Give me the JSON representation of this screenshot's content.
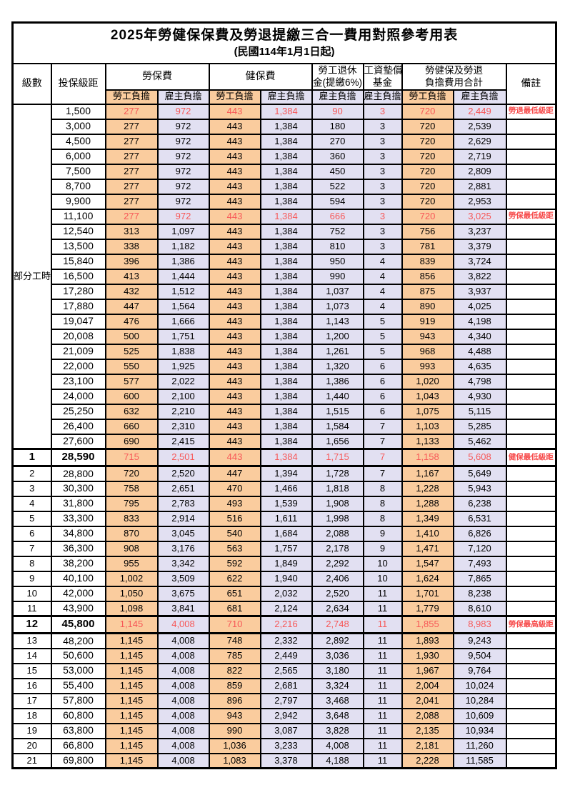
{
  "title": "2025年勞健保保費及勞退提繳三合一費用對照參考用表",
  "subtitle": "(民國114年1月1日起)",
  "columns": {
    "level": "級數",
    "bracket": "投保級距",
    "labor": "勞保費",
    "health": "健保費",
    "pension_l1": "勞工退休",
    "pension_l2": "金(提繳6%)",
    "fund_l1": "工資墊償",
    "fund_l2": "基金",
    "total_l1": "勞健保及勞退",
    "total_l2": "負擔費用合計",
    "remark": "備註",
    "employee": "勞工負擔",
    "employer": "雇主負擔"
  },
  "part_time_label": "部分工時",
  "part_time_rowspan": 23,
  "colors": {
    "employee_bg": "#FACC9E",
    "employer_bg": "#E2E0F2",
    "highlight_text": "#F75757",
    "note_text": "#F74B4B",
    "border": "#000000"
  },
  "row_fields": [
    "level",
    "bracket",
    "labor_employee",
    "labor_employer",
    "health_employee",
    "health_employer",
    "pension_employer",
    "fund_employer",
    "total_employee",
    "total_employer",
    "note",
    "flags"
  ],
  "rows": [
    [
      "",
      "1,500",
      "277",
      "972",
      "443",
      "1,384",
      "90",
      "3",
      "720",
      "2,449",
      "勞退最低級距",
      "red"
    ],
    [
      "",
      "3,000",
      "277",
      "972",
      "443",
      "1,384",
      "180",
      "3",
      "720",
      "2,539",
      "",
      ""
    ],
    [
      "",
      "4,500",
      "277",
      "972",
      "443",
      "1,384",
      "270",
      "3",
      "720",
      "2,629",
      "",
      ""
    ],
    [
      "",
      "6,000",
      "277",
      "972",
      "443",
      "1,384",
      "360",
      "3",
      "720",
      "2,719",
      "",
      ""
    ],
    [
      "",
      "7,500",
      "277",
      "972",
      "443",
      "1,384",
      "450",
      "3",
      "720",
      "2,809",
      "",
      ""
    ],
    [
      "",
      "8,700",
      "277",
      "972",
      "443",
      "1,384",
      "522",
      "3",
      "720",
      "2,881",
      "",
      ""
    ],
    [
      "",
      "9,900",
      "277",
      "972",
      "443",
      "1,384",
      "594",
      "3",
      "720",
      "2,953",
      "",
      ""
    ],
    [
      "",
      "11,100",
      "277",
      "972",
      "443",
      "1,384",
      "666",
      "3",
      "720",
      "3,025",
      "勞保最低級距",
      "red"
    ],
    [
      "",
      "12,540",
      "313",
      "1,097",
      "443",
      "1,384",
      "752",
      "3",
      "756",
      "3,237",
      "",
      ""
    ],
    [
      "",
      "13,500",
      "338",
      "1,182",
      "443",
      "1,384",
      "810",
      "3",
      "781",
      "3,379",
      "",
      ""
    ],
    [
      "",
      "15,840",
      "396",
      "1,386",
      "443",
      "1,384",
      "950",
      "4",
      "839",
      "3,724",
      "",
      ""
    ],
    [
      "",
      "16,500",
      "413",
      "1,444",
      "443",
      "1,384",
      "990",
      "4",
      "856",
      "3,822",
      "",
      ""
    ],
    [
      "",
      "17,280",
      "432",
      "1,512",
      "443",
      "1,384",
      "1,037",
      "4",
      "875",
      "3,937",
      "",
      ""
    ],
    [
      "",
      "17,880",
      "447",
      "1,564",
      "443",
      "1,384",
      "1,073",
      "4",
      "890",
      "4,025",
      "",
      ""
    ],
    [
      "",
      "19,047",
      "476",
      "1,666",
      "443",
      "1,384",
      "1,143",
      "5",
      "919",
      "4,198",
      "",
      ""
    ],
    [
      "",
      "20,008",
      "500",
      "1,751",
      "443",
      "1,384",
      "1,200",
      "5",
      "943",
      "4,340",
      "",
      ""
    ],
    [
      "",
      "21,009",
      "525",
      "1,838",
      "443",
      "1,384",
      "1,261",
      "5",
      "968",
      "4,488",
      "",
      ""
    ],
    [
      "",
      "22,000",
      "550",
      "1,925",
      "443",
      "1,384",
      "1,320",
      "6",
      "993",
      "4,635",
      "",
      ""
    ],
    [
      "",
      "23,100",
      "577",
      "2,022",
      "443",
      "1,384",
      "1,386",
      "6",
      "1,020",
      "4,798",
      "",
      ""
    ],
    [
      "",
      "24,000",
      "600",
      "2,100",
      "443",
      "1,384",
      "1,440",
      "6",
      "1,043",
      "4,930",
      "",
      ""
    ],
    [
      "",
      "25,250",
      "632",
      "2,210",
      "443",
      "1,384",
      "1,515",
      "6",
      "1,075",
      "5,115",
      "",
      ""
    ],
    [
      "",
      "26,400",
      "660",
      "2,310",
      "443",
      "1,384",
      "1,584",
      "7",
      "1,103",
      "5,285",
      "",
      ""
    ],
    [
      "",
      "27,600",
      "690",
      "2,415",
      "443",
      "1,384",
      "1,656",
      "7",
      "1,133",
      "5,462",
      "",
      ""
    ],
    [
      "1",
      "28,590",
      "715",
      "2,501",
      "443",
      "1,384",
      "1,715",
      "7",
      "1,158",
      "5,608",
      "健保最低級距",
      "red bold sep"
    ],
    [
      "2",
      "28,800",
      "720",
      "2,520",
      "447",
      "1,394",
      "1,728",
      "7",
      "1,167",
      "5,649",
      "",
      ""
    ],
    [
      "3",
      "30,300",
      "758",
      "2,651",
      "470",
      "1,466",
      "1,818",
      "8",
      "1,228",
      "5,943",
      "",
      ""
    ],
    [
      "4",
      "31,800",
      "795",
      "2,783",
      "493",
      "1,539",
      "1,908",
      "8",
      "1,288",
      "6,238",
      "",
      ""
    ],
    [
      "5",
      "33,300",
      "833",
      "2,914",
      "516",
      "1,611",
      "1,998",
      "8",
      "1,349",
      "6,531",
      "",
      ""
    ],
    [
      "6",
      "34,800",
      "870",
      "3,045",
      "540",
      "1,684",
      "2,088",
      "9",
      "1,410",
      "6,826",
      "",
      ""
    ],
    [
      "7",
      "36,300",
      "908",
      "3,176",
      "563",
      "1,757",
      "2,178",
      "9",
      "1,471",
      "7,120",
      "",
      ""
    ],
    [
      "8",
      "38,200",
      "955",
      "3,342",
      "592",
      "1,849",
      "2,292",
      "10",
      "1,547",
      "7,493",
      "",
      ""
    ],
    [
      "9",
      "40,100",
      "1,002",
      "3,509",
      "622",
      "1,940",
      "2,406",
      "10",
      "1,624",
      "7,865",
      "",
      ""
    ],
    [
      "10",
      "42,000",
      "1,050",
      "3,675",
      "651",
      "2,032",
      "2,520",
      "11",
      "1,701",
      "8,238",
      "",
      ""
    ],
    [
      "11",
      "43,900",
      "1,098",
      "3,841",
      "681",
      "2,124",
      "2,634",
      "11",
      "1,779",
      "8,610",
      "",
      ""
    ],
    [
      "12",
      "45,800",
      "1,145",
      "4,008",
      "710",
      "2,216",
      "2,748",
      "11",
      "1,855",
      "8,983",
      "勞保最高級距",
      "red bold sep"
    ],
    [
      "13",
      "48,200",
      "1,145",
      "4,008",
      "748",
      "2,332",
      "2,892",
      "11",
      "1,893",
      "9,243",
      "",
      ""
    ],
    [
      "14",
      "50,600",
      "1,145",
      "4,008",
      "785",
      "2,449",
      "3,036",
      "11",
      "1,930",
      "9,504",
      "",
      ""
    ],
    [
      "15",
      "53,000",
      "1,145",
      "4,008",
      "822",
      "2,565",
      "3,180",
      "11",
      "1,967",
      "9,764",
      "",
      ""
    ],
    [
      "16",
      "55,400",
      "1,145",
      "4,008",
      "859",
      "2,681",
      "3,324",
      "11",
      "2,004",
      "10,024",
      "",
      ""
    ],
    [
      "17",
      "57,800",
      "1,145",
      "4,008",
      "896",
      "2,797",
      "3,468",
      "11",
      "2,041",
      "10,284",
      "",
      ""
    ],
    [
      "18",
      "60,800",
      "1,145",
      "4,008",
      "943",
      "2,942",
      "3,648",
      "11",
      "2,088",
      "10,609",
      "",
      ""
    ],
    [
      "19",
      "63,800",
      "1,145",
      "4,008",
      "990",
      "3,087",
      "3,828",
      "11",
      "2,135",
      "10,934",
      "",
      ""
    ],
    [
      "20",
      "66,800",
      "1,145",
      "4,008",
      "1,036",
      "3,233",
      "4,008",
      "11",
      "2,181",
      "11,260",
      "",
      ""
    ],
    [
      "21",
      "69,800",
      "1,145",
      "4,008",
      "1,083",
      "3,378",
      "4,188",
      "11",
      "2,228",
      "11,585",
      "",
      ""
    ]
  ]
}
